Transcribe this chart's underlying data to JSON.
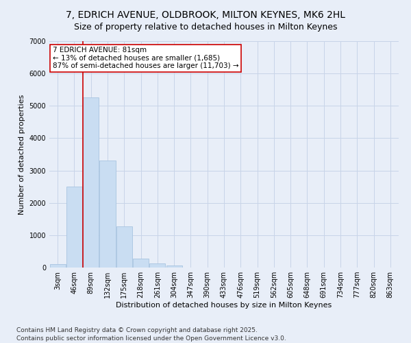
{
  "title": "7, EDRICH AVENUE, OLDBROOK, MILTON KEYNES, MK6 2HL",
  "subtitle": "Size of property relative to detached houses in Milton Keynes",
  "xlabel": "Distribution of detached houses by size in Milton Keynes",
  "ylabel": "Number of detached properties",
  "categories": [
    "3sqm",
    "46sqm",
    "89sqm",
    "132sqm",
    "175sqm",
    "218sqm",
    "261sqm",
    "304sqm",
    "347sqm",
    "390sqm",
    "433sqm",
    "476sqm",
    "519sqm",
    "562sqm",
    "605sqm",
    "648sqm",
    "691sqm",
    "734sqm",
    "777sqm",
    "820sqm",
    "863sqm"
  ],
  "values": [
    100,
    2500,
    5250,
    3300,
    1280,
    270,
    130,
    55,
    8,
    3,
    1,
    0,
    0,
    0,
    0,
    0,
    0,
    0,
    0,
    0,
    0
  ],
  "bar_color": "#c9ddf2",
  "bar_edge_color": "#a8c4e0",
  "vline_color": "#cc0000",
  "vline_x_index": 1.5,
  "annotation_text": "7 EDRICH AVENUE: 81sqm\n← 13% of detached houses are smaller (1,685)\n87% of semi-detached houses are larger (11,703) →",
  "annotation_box_facecolor": "#ffffff",
  "annotation_box_edgecolor": "#cc0000",
  "ylim": [
    0,
    7000
  ],
  "yticks": [
    0,
    1000,
    2000,
    3000,
    4000,
    5000,
    6000,
    7000
  ],
  "grid_color": "#c8d4e8",
  "background_color": "#e8eef8",
  "plot_bg_color": "#e8eef8",
  "footer_line1": "Contains HM Land Registry data © Crown copyright and database right 2025.",
  "footer_line2": "Contains public sector information licensed under the Open Government Licence v3.0.",
  "title_fontsize": 10,
  "label_fontsize": 8,
  "tick_fontsize": 7,
  "footer_fontsize": 6.5,
  "annot_fontsize": 7.5
}
